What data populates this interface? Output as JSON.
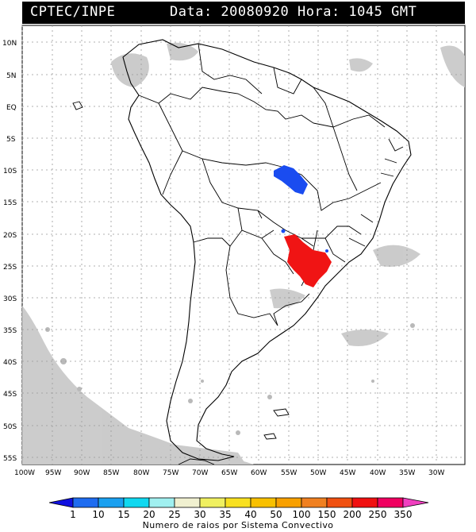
{
  "header": {
    "source": "CPTEC/INPE",
    "datetime": "Data: 20080920 Hora: 1045 GMT"
  },
  "map": {
    "lat_labels": [
      "10N",
      "5N",
      "EQ",
      "5S",
      "10S",
      "15S",
      "20S",
      "25S",
      "30S",
      "35S",
      "40S",
      "45S",
      "50S",
      "55S"
    ],
    "lon_labels": [
      "100W",
      "95W",
      "90W",
      "85W",
      "80W",
      "75W",
      "70W",
      "65W",
      "60W",
      "55W",
      "50W",
      "45W",
      "40W",
      "35W",
      "30W"
    ],
    "gridlines": true,
    "land_color": "#ffffff",
    "coast_color": "#000000",
    "cloud_color": "#c8c8c8"
  },
  "legend": {
    "ticks": [
      "1",
      "10",
      "15",
      "20",
      "25",
      "30",
      "35",
      "40",
      "50",
      "100",
      "150",
      "200",
      "250",
      "350"
    ],
    "colors": [
      "#1010e0",
      "#1e6cf0",
      "#1aa0f0",
      "#10d8f0",
      "#a0f0f0",
      "#f0f0d0",
      "#f0f060",
      "#f8e020",
      "#f8c000",
      "#f8a000",
      "#f08020",
      "#f05010",
      "#f01010",
      "#f00060",
      "#f040c0"
    ],
    "label": "Numero de raios por Sistema Convectivo"
  }
}
